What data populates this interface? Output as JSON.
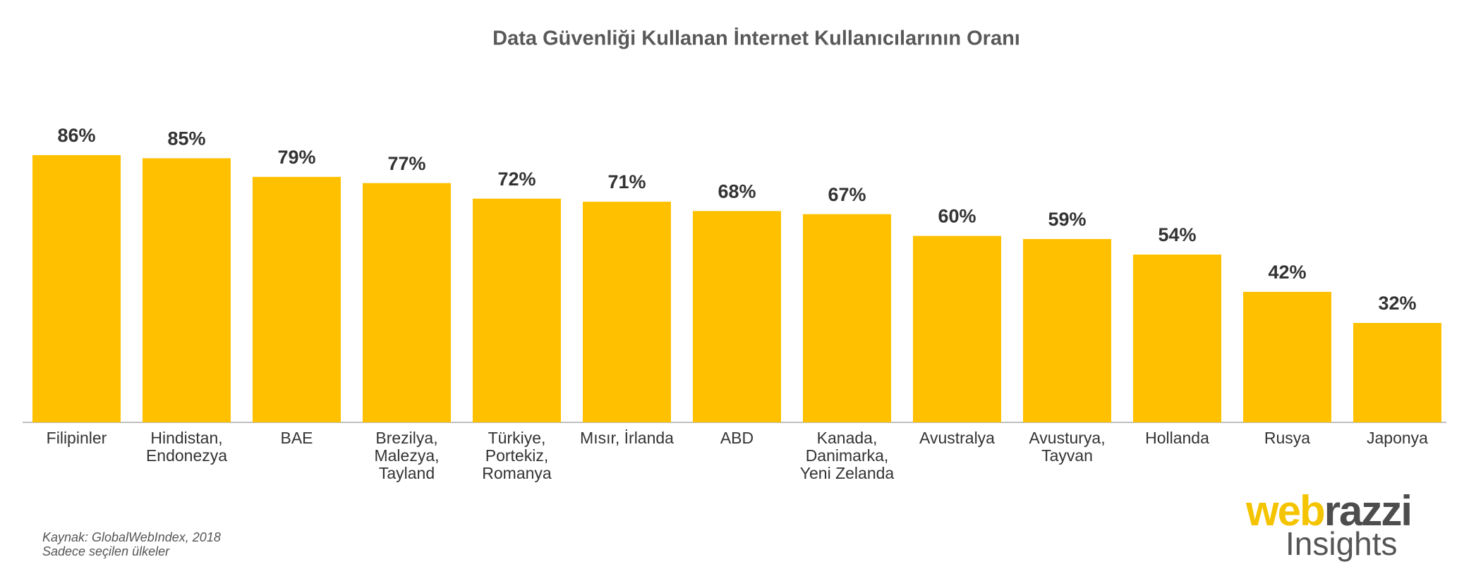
{
  "chart_data": {
    "type": "bar",
    "title": "Data Güvenliği Kullanan İnternet Kullanıcılarının Oranı",
    "categories": [
      "Filipinler",
      "Hindistan, Endonezya",
      "BAE",
      "Brezilya, Malezya, Tayland",
      "Türkiye, Portekiz, Romanya",
      "Mısır, İrlanda",
      "ABD",
      "Kanada, Danimarka, Yeni Zelanda",
      "Avustralya",
      "Avusturya, Tayvan",
      "Hollanda",
      "Rusya",
      "Japonya"
    ],
    "values": [
      86,
      85,
      79,
      77,
      72,
      71,
      68,
      67,
      60,
      59,
      54,
      42,
      32
    ],
    "value_labels": [
      "86%",
      "85%",
      "79%",
      "77%",
      "72%",
      "71%",
      "68%",
      "67%",
      "60%",
      "59%",
      "54%",
      "42%",
      "32%"
    ],
    "color": "#FFC000",
    "notes": [
      "Kaynak: GlobalWebIndex, 2018",
      "Sadece seçilen ülkeler"
    ]
  },
  "logo": {
    "brand_part_1": "web",
    "brand_part_2": "razzi",
    "subtitle": "Insights"
  }
}
